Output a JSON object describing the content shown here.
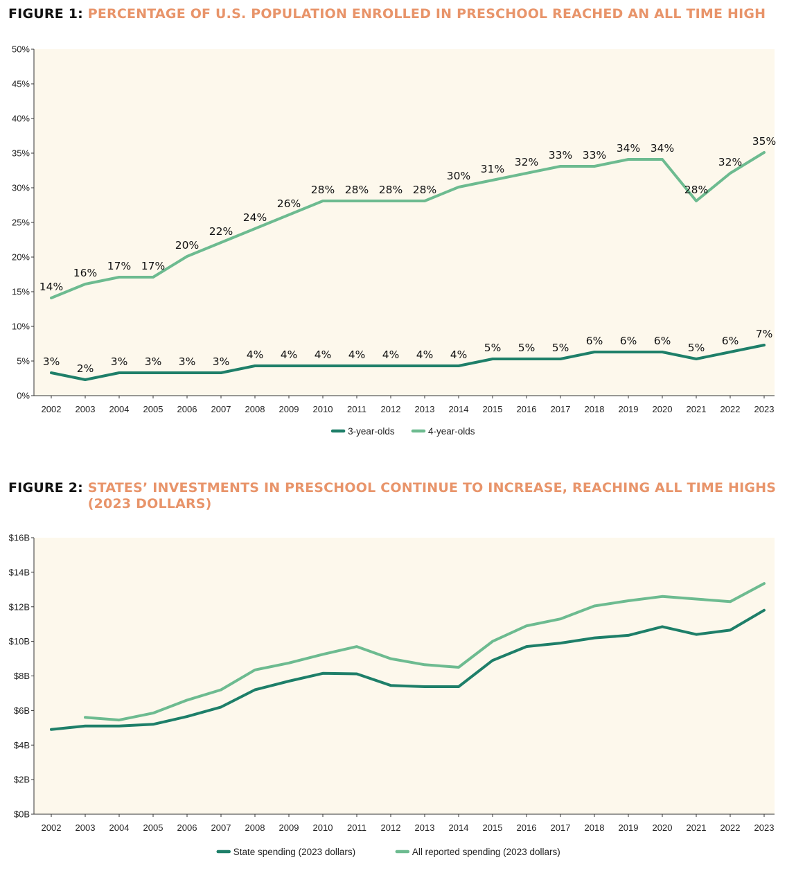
{
  "colors": {
    "series_dark": "#1E7F69",
    "series_light": "#6DBB90",
    "plot_bg": "#FDF8EC",
    "title_accent": "#E8946A"
  },
  "figure1": {
    "title_lead": "FIGURE 1:",
    "title_rest": "PERCENTAGE OF U.S. POPULATION ENROLLED IN PRESCHOOL REACHED AN ALL TIME HIGH"
  },
  "figure2": {
    "title_lead": "FIGURE 2:",
    "title_rest": "STATES’ INVESTMENTS IN PRESCHOOL CONTINUE TO INCREASE, REACHING ALL TIME HIGHS (2023 DOLLARS)"
  },
  "chart_data": [
    {
      "type": "line",
      "title": "PERCENTAGE OF U.S. POPULATION ENROLLED IN PRESCHOOL REACHED AN ALL TIME HIGH",
      "categories": [
        "2002",
        "2003",
        "2004",
        "2005",
        "2006",
        "2007",
        "2008",
        "2009",
        "2010",
        "2011",
        "2012",
        "2013",
        "2014",
        "2015",
        "2016",
        "2017",
        "2018",
        "2019",
        "2020",
        "2021",
        "2022",
        "2023"
      ],
      "ylim": [
        0,
        50
      ],
      "yticks": [
        "0%",
        "5%",
        "10%",
        "15%",
        "20%",
        "25%",
        "30%",
        "35%",
        "40%",
        "45%",
        "50%"
      ],
      "grid": false,
      "legend_position": "bottom-center",
      "series": [
        {
          "name": "3-year-olds",
          "color": "#1E7F69",
          "values": [
            3.3,
            2.3,
            3.3,
            3.3,
            3.3,
            3.3,
            4.3,
            4.3,
            4.3,
            4.3,
            4.3,
            4.3,
            4.3,
            5.3,
            5.3,
            5.3,
            6.3,
            6.3,
            6.3,
            5.3,
            6.3,
            7.3
          ],
          "labels": [
            "3%",
            "2%",
            "3%",
            "3%",
            "3%",
            "3%",
            "4%",
            "4%",
            "4%",
            "4%",
            "4%",
            "4%",
            "4%",
            "5%",
            "5%",
            "5%",
            "6%",
            "6%",
            "6%",
            "5%",
            "6%",
            "7%"
          ]
        },
        {
          "name": "4-year-olds",
          "color": "#6DBB90",
          "values": [
            14.1,
            16.1,
            17.1,
            17.1,
            20.1,
            22.1,
            24.1,
            26.1,
            28.1,
            28.1,
            28.1,
            28.1,
            30.1,
            31.1,
            32.1,
            33.1,
            33.1,
            34.1,
            34.1,
            28.1,
            32.1,
            35.1
          ],
          "labels": [
            "14%",
            "16%",
            "17%",
            "17%",
            "20%",
            "22%",
            "24%",
            "26%",
            "28%",
            "28%",
            "28%",
            "28%",
            "30%",
            "31%",
            "32%",
            "33%",
            "33%",
            "34%",
            "34%",
            "28%",
            "32%",
            "35%"
          ]
        }
      ]
    },
    {
      "type": "line",
      "title": "STATES’ INVESTMENTS IN PRESCHOOL CONTINUE TO INCREASE, REACHING ALL TIME HIGHS (2023 DOLLARS)",
      "categories": [
        "2002",
        "2003",
        "2004",
        "2005",
        "2006",
        "2007",
        "2008",
        "2009",
        "2010",
        "2011",
        "2012",
        "2013",
        "2014",
        "2015",
        "2016",
        "2017",
        "2018",
        "2019",
        "2020",
        "2021",
        "2022",
        "2023"
      ],
      "ylim": [
        0,
        16
      ],
      "yticks": [
        "$0B",
        "$2B",
        "$4B",
        "$6B",
        "$8B",
        "$10B",
        "$12B",
        "$14B",
        "$16B"
      ],
      "grid": false,
      "legend_position": "bottom-center",
      "series": [
        {
          "name": "State spending (2023 dollars)",
          "color": "#1E7F69",
          "values": [
            4.9,
            5.1,
            5.1,
            5.2,
            5.65,
            6.2,
            7.2,
            7.7,
            8.15,
            8.12,
            7.45,
            7.38,
            7.38,
            8.9,
            9.7,
            9.9,
            10.2,
            10.35,
            10.85,
            10.4,
            10.65,
            11.8
          ]
        },
        {
          "name": "All reported spending (2023 dollars)",
          "color": "#6DBB90",
          "values": [
            null,
            5.6,
            5.45,
            5.85,
            6.6,
            7.2,
            8.35,
            8.75,
            9.25,
            9.7,
            9.0,
            8.65,
            8.5,
            10.0,
            10.9,
            11.3,
            12.05,
            12.35,
            12.6,
            12.45,
            12.3,
            13.35
          ]
        }
      ]
    }
  ]
}
